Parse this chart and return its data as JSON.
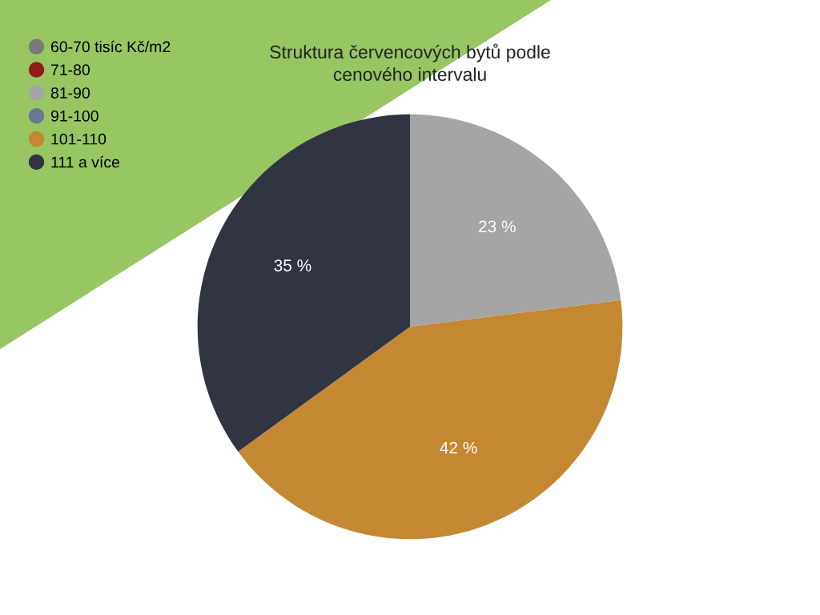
{
  "chart_data": {
    "type": "pie",
    "title": "Struktura červencových bytů podle\ncenového intervalu",
    "categories": [
      "60-70 tisíc Kč/m2",
      "71-80",
      "81-90",
      "91-100",
      "101-110",
      "111 a více"
    ],
    "values": [
      0,
      0,
      23,
      0,
      42,
      35
    ],
    "colors": [
      "#7a7a7a",
      "#8e1c17",
      "#a5a5a5",
      "#6b7893",
      "#c48833",
      "#313542"
    ],
    "value_labels": [
      null,
      null,
      "23 %",
      null,
      "42 %",
      "35 %"
    ],
    "legend": "top left"
  }
}
